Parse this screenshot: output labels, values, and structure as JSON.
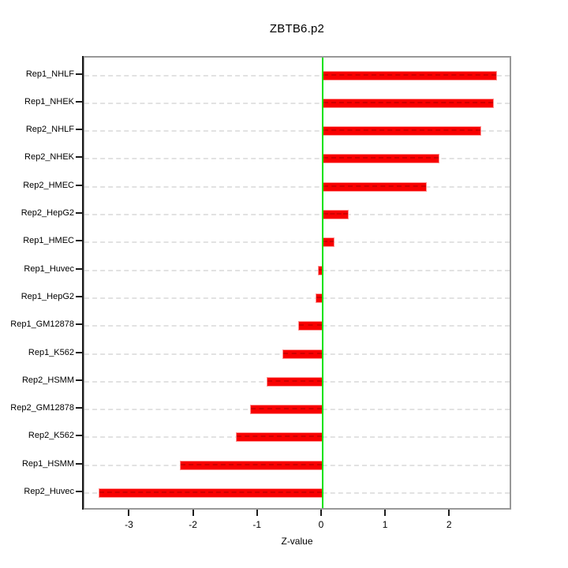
{
  "title": "ZBTB6.p2",
  "chart_data": {
    "type": "bar",
    "orientation": "horizontal",
    "title": "ZBTB6.p2",
    "xlabel": "Z-value",
    "ylabel": "",
    "categories": [
      "Rep1_NHLF",
      "Rep1_NHEK",
      "Rep2_NHLF",
      "Rep2_NHEK",
      "Rep2_HMEC",
      "Rep2_HepG2",
      "Rep1_HMEC",
      "Rep1_Huvec",
      "Rep1_HepG2",
      "Rep1_GM12878",
      "Rep1_K562",
      "Rep2_HSMM",
      "Rep2_GM12878",
      "Rep2_K562",
      "Rep1_HSMM",
      "Rep2_Huvec"
    ],
    "values": [
      2.72,
      2.67,
      2.48,
      1.82,
      1.63,
      0.41,
      0.18,
      -0.07,
      -0.11,
      -0.38,
      -0.63,
      -0.87,
      -1.13,
      -1.35,
      -2.23,
      -3.5
    ],
    "x_ticks": [
      -3,
      -2,
      -1,
      0,
      1,
      2
    ],
    "xlim": [
      -3.72,
      2.97
    ],
    "grid": true,
    "legend": "none",
    "bar_color": "#f80000",
    "bar_border_color": "#ff9090",
    "bar_dash_color": "#cf0000",
    "zero_line_color": "#00e204",
    "grid_color": "#e2e2e2",
    "box_color": "#989898",
    "axis_color": "#1c1c1c"
  }
}
